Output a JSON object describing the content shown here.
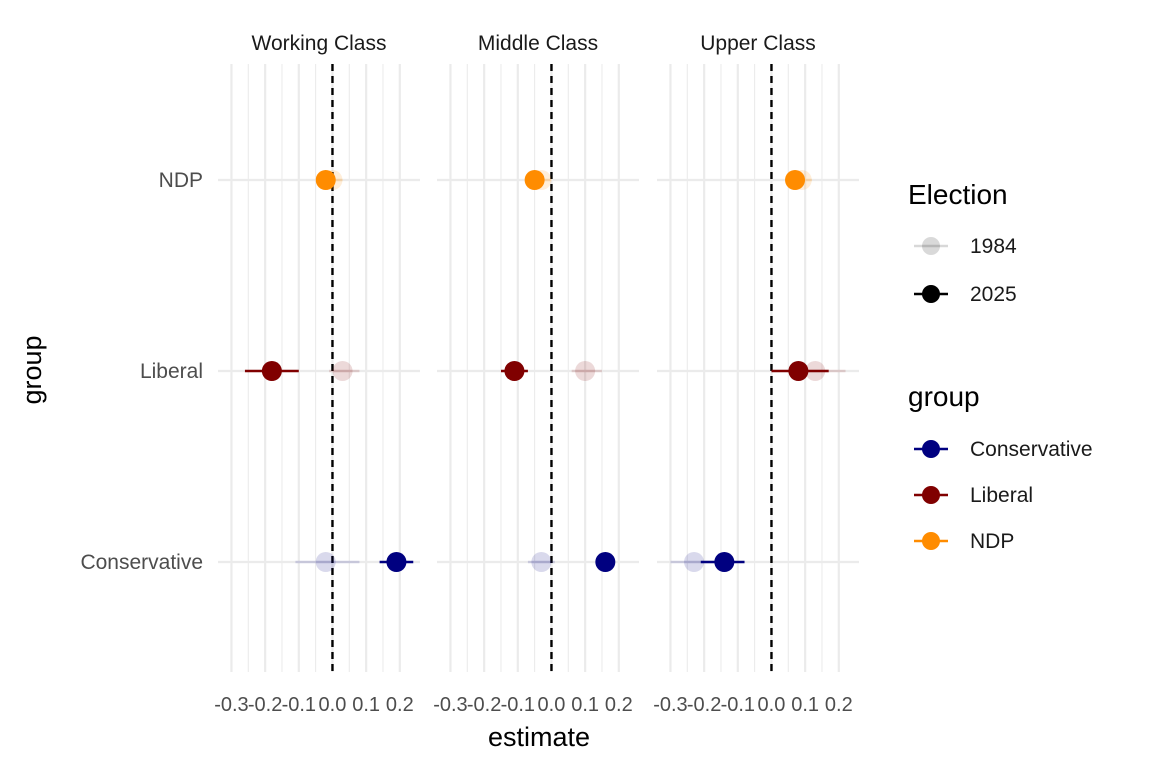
{
  "chart_data": {
    "type": "scatter",
    "subtype": "faceted point-range (coefficient) plot",
    "xlabel": "estimate",
    "ylabel": "group",
    "x_ticks": [
      -0.3,
      -0.2,
      -0.1,
      0.0,
      0.1,
      0.2
    ],
    "x_tick_labels": [
      "-0.3",
      "-0.2",
      "-0.1",
      "0.0",
      "0.1",
      "0.2"
    ],
    "xlim": [
      -0.3,
      0.2
    ],
    "reference_line_x": 0,
    "reference_line_style": "dashed",
    "grid": true,
    "categories": [
      "Conservative",
      "Liberal",
      "NDP"
    ],
    "facets": [
      "Working Class",
      "Middle Class",
      "Upper Class"
    ],
    "legend_position": "right",
    "legends": [
      {
        "title": "Election",
        "entries": [
          "1984",
          "2025"
        ]
      },
      {
        "title": "group",
        "entries": [
          "Conservative",
          "Liberal",
          "NDP"
        ]
      }
    ],
    "colors": {
      "Conservative": "#000080",
      "Liberal": "#800000",
      "NDP": "#FF8C00"
    },
    "election_alpha": {
      "1984": 0.15,
      "2025": 1.0
    },
    "data": [
      {
        "facet": "Working Class",
        "group": "NDP",
        "election": "1984",
        "estimate": 0.0,
        "low": -0.04,
        "high": 0.03
      },
      {
        "facet": "Working Class",
        "group": "NDP",
        "election": "2025",
        "estimate": -0.02,
        "low": -0.03,
        "high": 0.0
      },
      {
        "facet": "Working Class",
        "group": "Liberal",
        "election": "1984",
        "estimate": 0.03,
        "low": -0.01,
        "high": 0.08
      },
      {
        "facet": "Working Class",
        "group": "Liberal",
        "election": "2025",
        "estimate": -0.18,
        "low": -0.26,
        "high": -0.1
      },
      {
        "facet": "Working Class",
        "group": "Conservative",
        "election": "1984",
        "estimate": -0.02,
        "low": -0.11,
        "high": 0.08
      },
      {
        "facet": "Working Class",
        "group": "Conservative",
        "election": "2025",
        "estimate": 0.19,
        "low": 0.14,
        "high": 0.24
      },
      {
        "facet": "Middle Class",
        "group": "NDP",
        "election": "1984",
        "estimate": -0.03,
        "low": -0.05,
        "high": 0.0
      },
      {
        "facet": "Middle Class",
        "group": "NDP",
        "election": "2025",
        "estimate": -0.05,
        "low": -0.07,
        "high": -0.03
      },
      {
        "facet": "Middle Class",
        "group": "Liberal",
        "election": "1984",
        "estimate": 0.1,
        "low": 0.06,
        "high": 0.15
      },
      {
        "facet": "Middle Class",
        "group": "Liberal",
        "election": "2025",
        "estimate": -0.11,
        "low": -0.15,
        "high": -0.07
      },
      {
        "facet": "Middle Class",
        "group": "Conservative",
        "election": "1984",
        "estimate": -0.03,
        "low": -0.07,
        "high": 0.01
      },
      {
        "facet": "Middle Class",
        "group": "Conservative",
        "election": "2025",
        "estimate": 0.16,
        "low": 0.16,
        "high": 0.16
      },
      {
        "facet": "Upper Class",
        "group": "NDP",
        "election": "1984",
        "estimate": 0.09,
        "low": 0.05,
        "high": 0.12
      },
      {
        "facet": "Upper Class",
        "group": "NDP",
        "election": "2025",
        "estimate": 0.07,
        "low": 0.06,
        "high": 0.09
      },
      {
        "facet": "Upper Class",
        "group": "Liberal",
        "election": "1984",
        "estimate": 0.13,
        "low": 0.08,
        "high": 0.22
      },
      {
        "facet": "Upper Class",
        "group": "Liberal",
        "election": "2025",
        "estimate": 0.08,
        "low": 0.0,
        "high": 0.17
      },
      {
        "facet": "Upper Class",
        "group": "Conservative",
        "election": "1984",
        "estimate": -0.23,
        "low": -0.3,
        "high": -0.17
      },
      {
        "facet": "Upper Class",
        "group": "Conservative",
        "election": "2025",
        "estimate": -0.14,
        "low": -0.21,
        "high": -0.08
      }
    ]
  }
}
